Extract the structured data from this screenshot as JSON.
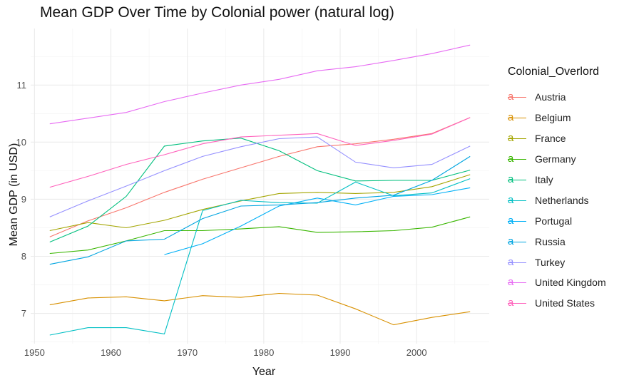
{
  "chart_data": {
    "type": "line",
    "title": "Mean GDP Over Time by Colonial power (natural log)",
    "xlabel": "Year",
    "ylabel": "Mean GDP (in USD)",
    "xlim": [
      1949.5,
      2009.5
    ],
    "ylim": [
      6.47,
      11.99
    ],
    "x_ticks": [
      1950,
      1960,
      1970,
      1980,
      1990,
      2000
    ],
    "y_ticks": [
      7,
      8,
      9,
      10,
      11
    ],
    "grid": true,
    "legend_title": "Colonial_Overlord",
    "legend_position": "right",
    "x": [
      1952,
      1957,
      1962,
      1967,
      1972,
      1977,
      1982,
      1987,
      1992,
      1997,
      2002,
      2007
    ],
    "series": [
      {
        "name": "Austria",
        "color": "#F8766D",
        "values": [
          8.34,
          8.62,
          8.85,
          9.12,
          9.35,
          9.55,
          9.75,
          9.92,
          9.97,
          10.05,
          10.15,
          10.43
        ]
      },
      {
        "name": "Belgium",
        "color": "#D89000",
        "values": [
          7.15,
          7.27,
          7.29,
          7.22,
          7.31,
          7.28,
          7.35,
          7.32,
          7.08,
          6.8,
          6.93,
          7.03
        ]
      },
      {
        "name": "France",
        "color": "#A3A500",
        "values": [
          8.45,
          8.59,
          8.5,
          8.63,
          8.82,
          8.97,
          9.1,
          9.12,
          9.1,
          9.12,
          9.22,
          9.43
        ]
      },
      {
        "name": "Germany",
        "color": "#39B600",
        "values": [
          8.05,
          8.11,
          8.27,
          8.45,
          8.45,
          8.48,
          8.52,
          8.42,
          8.43,
          8.45,
          8.51,
          8.69
        ]
      },
      {
        "name": "Italy",
        "color": "#00BF7D",
        "values": [
          8.25,
          8.53,
          9.05,
          9.93,
          10.02,
          10.07,
          9.85,
          9.5,
          9.32,
          9.33,
          9.33,
          9.51
        ]
      },
      {
        "name": "Netherlands",
        "color": "#00BFC4",
        "values": [
          6.62,
          6.75,
          6.75,
          6.64,
          8.8,
          8.98,
          8.94,
          8.93,
          9.3,
          9.06,
          9.11,
          9.36
        ]
      },
      {
        "name": "Portugal",
        "color": "#00B0F6",
        "values": [
          null,
          null,
          null,
          8.03,
          8.22,
          8.53,
          8.88,
          9.02,
          8.9,
          9.05,
          9.08,
          9.2
        ]
      },
      {
        "name": "Russia",
        "color": "#00A5E0",
        "values": [
          7.86,
          7.99,
          8.27,
          8.3,
          8.66,
          8.88,
          8.9,
          8.94,
          9.02,
          9.07,
          9.33,
          9.75
        ]
      },
      {
        "name": "Turkey",
        "color": "#9590FF",
        "values": [
          8.69,
          8.97,
          9.23,
          9.5,
          9.75,
          9.92,
          10.06,
          10.09,
          9.65,
          9.55,
          9.61,
          9.93
        ]
      },
      {
        "name": "United Kingdom",
        "color": "#E76BF3",
        "values": [
          10.32,
          10.42,
          10.52,
          10.71,
          10.86,
          11.0,
          11.1,
          11.25,
          11.32,
          11.43,
          11.55,
          11.7
        ]
      },
      {
        "name": "United States",
        "color": "#FF62BC",
        "values": [
          9.21,
          9.4,
          9.61,
          9.78,
          9.97,
          10.09,
          10.12,
          10.15,
          9.94,
          10.03,
          10.14,
          10.43
        ]
      }
    ]
  }
}
